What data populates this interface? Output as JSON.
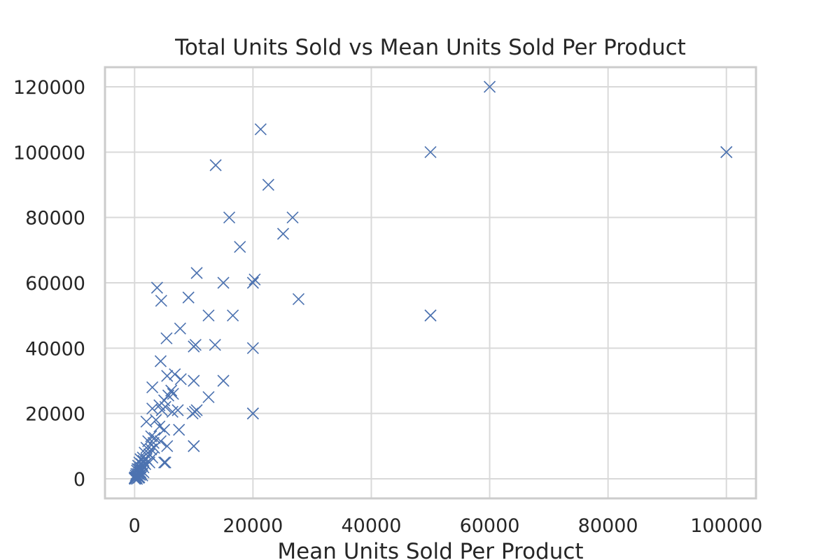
{
  "chart_data": {
    "type": "scatter",
    "title": "Total Units Sold vs Mean Units Sold Per Product",
    "xlabel": "Mean Units Sold Per Product",
    "ylabel": "",
    "xlim": [
      -5000,
      105000
    ],
    "ylim": [
      -6000,
      126000
    ],
    "xticks": [
      0,
      20000,
      40000,
      60000,
      80000,
      100000
    ],
    "yticks": [
      0,
      20000,
      40000,
      60000,
      80000,
      100000,
      120000
    ],
    "grid": true,
    "marker": "x",
    "color": "#4c72b0",
    "series": [
      {
        "points": [
          [
            60000,
            120000
          ],
          [
            21300,
            107000
          ],
          [
            13700,
            96000
          ],
          [
            22600,
            90000
          ],
          [
            50000,
            100000
          ],
          [
            100000,
            100000
          ],
          [
            100000,
            100000
          ],
          [
            16000,
            80000
          ],
          [
            26700,
            80000
          ],
          [
            25100,
            75000
          ],
          [
            17800,
            71000
          ],
          [
            10500,
            63000
          ],
          [
            3800,
            58500
          ],
          [
            4500,
            54500
          ],
          [
            15000,
            60000
          ],
          [
            20000,
            60000
          ],
          [
            20300,
            61000
          ],
          [
            9100,
            55500
          ],
          [
            27700,
            55000
          ],
          [
            12500,
            50000
          ],
          [
            16600,
            50000
          ],
          [
            50000,
            50000
          ],
          [
            50000,
            50000
          ],
          [
            7700,
            46000
          ],
          [
            5400,
            43000
          ],
          [
            10000,
            40500
          ],
          [
            10300,
            41000
          ],
          [
            13600,
            41000
          ],
          [
            20000,
            40000
          ],
          [
            4400,
            36000
          ],
          [
            6800,
            32000
          ],
          [
            5500,
            31500
          ],
          [
            7800,
            30500
          ],
          [
            10000,
            30000
          ],
          [
            15000,
            30000
          ],
          [
            3000,
            28000
          ],
          [
            6500,
            26000
          ],
          [
            5700,
            25500
          ],
          [
            6200,
            27000
          ],
          [
            12500,
            25000
          ],
          [
            5000,
            24000
          ],
          [
            4200,
            22500
          ],
          [
            3000,
            21500
          ],
          [
            4600,
            21000
          ],
          [
            5200,
            22000
          ],
          [
            6400,
            20500
          ],
          [
            7300,
            21000
          ],
          [
            9800,
            20000
          ],
          [
            10200,
            20500
          ],
          [
            10500,
            21000
          ],
          [
            20000,
            20000
          ],
          [
            20000,
            20000
          ],
          [
            2000,
            17500
          ],
          [
            3600,
            18000
          ],
          [
            4200,
            16000
          ],
          [
            5000,
            15000
          ],
          [
            7500,
            15000
          ],
          [
            2800,
            13000
          ],
          [
            3400,
            12500
          ],
          [
            2300,
            11500
          ],
          [
            3200,
            11000
          ],
          [
            4400,
            11500
          ],
          [
            5500,
            10000
          ],
          [
            10000,
            10000
          ],
          [
            10000,
            10000
          ],
          [
            2000,
            9500
          ],
          [
            2800,
            9000
          ],
          [
            3300,
            9500
          ],
          [
            1700,
            8000
          ],
          [
            2500,
            7500
          ],
          [
            1400,
            6500
          ],
          [
            2000,
            6000
          ],
          [
            1000,
            6000
          ],
          [
            3000,
            6500
          ],
          [
            1500,
            5500
          ],
          [
            2500,
            5000
          ],
          [
            5000,
            5000
          ],
          [
            5200,
            5000
          ],
          [
            800,
            5000
          ],
          [
            1200,
            4500
          ],
          [
            1800,
            4500
          ],
          [
            600,
            4000
          ],
          [
            1000,
            3500
          ],
          [
            1500,
            3500
          ],
          [
            500,
            3000
          ],
          [
            800,
            3000
          ],
          [
            1200,
            2500
          ],
          [
            400,
            2500
          ],
          [
            700,
            2000
          ],
          [
            1000,
            2000
          ],
          [
            1500,
            2000
          ],
          [
            300,
            1500
          ],
          [
            600,
            1500
          ],
          [
            900,
            1200
          ],
          [
            1300,
            1000
          ],
          [
            200,
            1000
          ],
          [
            500,
            800
          ],
          [
            100,
            500
          ],
          [
            300,
            400
          ],
          [
            700,
            300
          ],
          [
            0,
            200
          ],
          [
            150,
            100
          ],
          [
            50,
            0
          ],
          [
            400,
            0
          ],
          [
            800,
            500
          ],
          [
            1100,
            1500
          ]
        ]
      }
    ]
  }
}
